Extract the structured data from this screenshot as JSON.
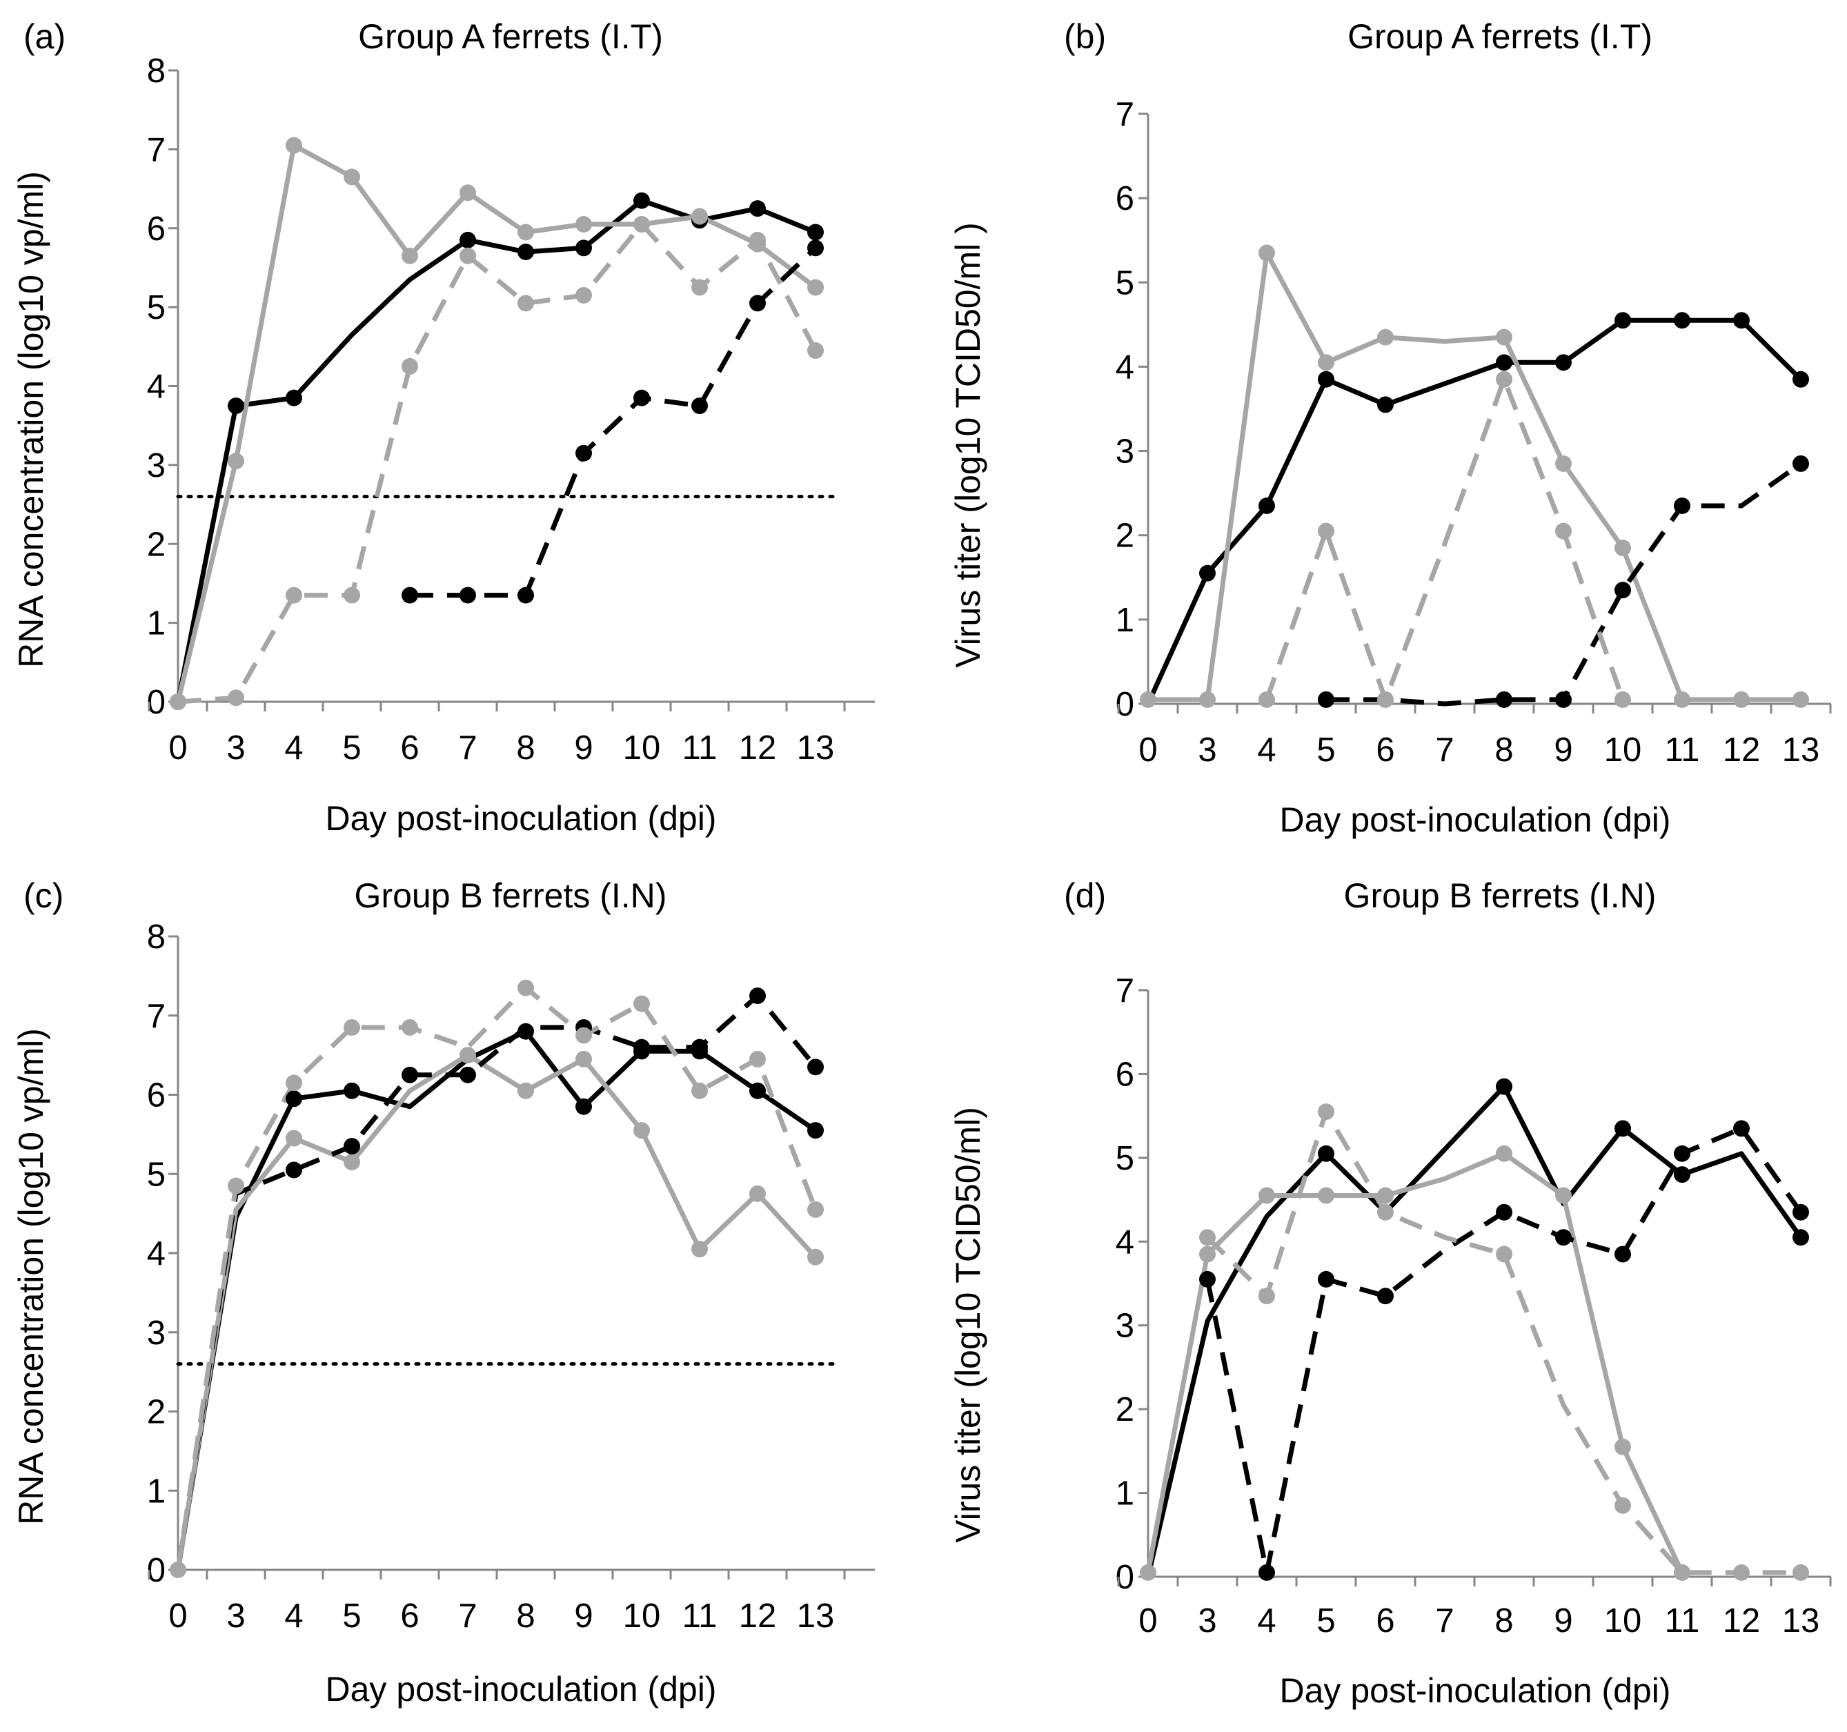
{
  "chart_data": [
    {
      "type": "line",
      "panel_label": "(a)",
      "title": "Group A ferrets (I.T)",
      "xlabel": "Day post-inoculation (dpi)",
      "ylabel": "RNA concentration (log10 vp/ml)",
      "categories": [
        "0",
        "3",
        "4",
        "5",
        "6",
        "7",
        "8",
        "9",
        "10",
        "11",
        "12",
        "13"
      ],
      "ylim": [
        0,
        8
      ],
      "yticks": [
        0,
        1,
        2,
        3,
        4,
        5,
        6,
        7,
        8
      ],
      "grid": false,
      "legend": "none",
      "series": [
        {
          "color": "#000000",
          "style": "solid",
          "markers": [
            0,
            1,
            2,
            5,
            6,
            7,
            8,
            9,
            10,
            11
          ],
          "values": [
            0,
            3.75,
            3.85,
            4.65,
            5.35,
            5.85,
            5.7,
            5.75,
            6.35,
            6.1,
            6.25,
            5.95
          ]
        },
        {
          "color": "#a6a6a6",
          "style": "solid",
          "markers": [
            0,
            1,
            2,
            3,
            4,
            5,
            6,
            7,
            8,
            9,
            10,
            11
          ],
          "values": [
            0,
            3.05,
            7.05,
            6.65,
            5.65,
            6.45,
            5.95,
            6.05,
            6.05,
            6.15,
            5.8,
            5.25
          ]
        },
        {
          "color": "#000000",
          "style": "dashed",
          "markers": [
            4,
            5,
            6,
            7,
            8,
            9,
            10,
            11
          ],
          "values": [
            null,
            null,
            null,
            null,
            1.35,
            1.35,
            1.35,
            3.15,
            3.85,
            3.75,
            5.05,
            5.75
          ]
        },
        {
          "color": "#a6a6a6",
          "style": "dashed",
          "markers": [
            0,
            1,
            2,
            3,
            4,
            5,
            6,
            7,
            8,
            9,
            10,
            11
          ],
          "values": [
            0,
            0.05,
            1.35,
            1.35,
            4.25,
            5.65,
            5.05,
            5.15,
            6.05,
            5.25,
            5.85,
            4.45
          ]
        }
      ],
      "threshold": {
        "value": 2.6,
        "style": "dotted"
      }
    },
    {
      "type": "line",
      "panel_label": "(b)",
      "title": "Group A ferrets (I.T)",
      "xlabel": "Day post-inoculation (dpi)",
      "ylabel": "Virus titer (log10 TCID50/ml )",
      "categories": [
        "0",
        "3",
        "4",
        "5",
        "6",
        "7",
        "8",
        "9",
        "10",
        "11",
        "12",
        "13"
      ],
      "ylim": [
        0,
        7
      ],
      "yticks": [
        0,
        1,
        2,
        3,
        4,
        5,
        6,
        7
      ],
      "grid": false,
      "legend": "none",
      "series": [
        {
          "color": "#000000",
          "style": "solid",
          "markers": [
            1,
            2,
            3,
            4,
            6,
            7,
            8,
            9,
            10,
            11
          ],
          "values": [
            0,
            1.55,
            2.35,
            3.85,
            3.55,
            3.8,
            4.05,
            4.05,
            4.55,
            4.55,
            4.55,
            3.85
          ]
        },
        {
          "color": "#a6a6a6",
          "style": "solid",
          "markers": [
            0,
            1,
            2,
            3,
            4,
            6,
            7,
            8,
            9,
            10,
            11
          ],
          "values": [
            0.05,
            0.05,
            5.35,
            4.05,
            4.35,
            4.3,
            4.35,
            2.85,
            1.85,
            0.05,
            0.05,
            0.05
          ]
        },
        {
          "color": "#000000",
          "style": "dashed",
          "markers": [
            3,
            6,
            7,
            8,
            9,
            11
          ],
          "values": [
            null,
            null,
            null,
            0.05,
            0.05,
            0,
            0.05,
            0.05,
            1.35,
            2.35,
            2.35,
            2.85
          ]
        },
        {
          "color": "#a6a6a6",
          "style": "dashed",
          "markers": [
            2,
            3,
            4,
            6,
            7,
            8
          ],
          "values": [
            null,
            null,
            0.05,
            2.05,
            0.05,
            1.9,
            3.85,
            2.05,
            0.05,
            null,
            null,
            null
          ]
        }
      ]
    },
    {
      "type": "line",
      "panel_label": "(c)",
      "title": "Group B ferrets (I.N)",
      "xlabel": "Day post-inoculation (dpi)",
      "ylabel": "RNA concentration (log10 vp/ml)",
      "categories": [
        "0",
        "3",
        "4",
        "5",
        "6",
        "7",
        "8",
        "9",
        "10",
        "11",
        "12",
        "13"
      ],
      "ylim": [
        0,
        8
      ],
      "yticks": [
        0,
        1,
        2,
        3,
        4,
        5,
        6,
        7,
        8
      ],
      "grid": false,
      "legend": "none",
      "series": [
        {
          "color": "#000000",
          "style": "solid",
          "markers": [
            2,
            3,
            6,
            7,
            8,
            9,
            10,
            11
          ],
          "values": [
            0,
            4.45,
            5.95,
            6.05,
            5.85,
            6.45,
            6.8,
            5.85,
            6.55,
            6.55,
            6.05,
            5.55
          ]
        },
        {
          "color": "#a6a6a6",
          "style": "solid",
          "markers": [
            2,
            3,
            5,
            6,
            7,
            8,
            9,
            10,
            11
          ],
          "values": [
            0,
            4.55,
            5.45,
            5.15,
            6.05,
            6.5,
            6.05,
            6.45,
            5.55,
            4.05,
            4.75,
            3.95
          ]
        },
        {
          "color": "#000000",
          "style": "dashed",
          "markers": [
            2,
            3,
            4,
            5,
            7,
            8,
            9,
            10,
            11
          ],
          "values": [
            0,
            4.75,
            5.05,
            5.35,
            6.25,
            6.25,
            6.85,
            6.85,
            6.6,
            6.6,
            7.25,
            6.35
          ]
        },
        {
          "color": "#a6a6a6",
          "style": "dashed",
          "markers": [
            0,
            1,
            2,
            3,
            4,
            6,
            7,
            8,
            9,
            10,
            11
          ],
          "values": [
            0,
            4.85,
            6.15,
            6.85,
            6.85,
            6.6,
            7.35,
            6.75,
            7.15,
            6.05,
            6.45,
            4.55
          ]
        }
      ],
      "threshold": {
        "value": 2.6,
        "style": "dotted"
      }
    },
    {
      "type": "line",
      "panel_label": "(d)",
      "title": "Group B ferrets (I.N)",
      "xlabel": "Day post-inoculation (dpi)",
      "ylabel": "Virus titer (log10 TCID50/ml)",
      "categories": [
        "0",
        "3",
        "4",
        "5",
        "6",
        "7",
        "8",
        "9",
        "10",
        "11",
        "12",
        "13"
      ],
      "ylim": [
        0,
        7
      ],
      "yticks": [
        0,
        1,
        2,
        3,
        4,
        5,
        6,
        7
      ],
      "grid": false,
      "legend": "none",
      "series": [
        {
          "color": "#000000",
          "style": "solid",
          "markers": [
            3,
            6,
            8,
            9,
            11
          ],
          "values": [
            0,
            3.05,
            4.3,
            5.05,
            4.35,
            5.1,
            5.85,
            4.45,
            5.35,
            4.8,
            5.05,
            4.05
          ]
        },
        {
          "color": "#a6a6a6",
          "style": "solid",
          "markers": [
            0,
            1,
            2,
            3,
            4,
            6,
            7,
            8,
            9
          ],
          "values": [
            0.05,
            3.85,
            4.55,
            4.55,
            4.55,
            4.75,
            5.05,
            4.55,
            1.55,
            0.05,
            null,
            null
          ]
        },
        {
          "color": "#000000",
          "style": "dashed",
          "markers": [
            1,
            2,
            3,
            4,
            6,
            7,
            8,
            9,
            10,
            11
          ],
          "values": [
            null,
            3.55,
            0.05,
            3.55,
            3.35,
            3.9,
            4.35,
            4.05,
            3.85,
            5.05,
            5.35,
            4.35
          ]
        },
        {
          "color": "#a6a6a6",
          "style": "dashed",
          "markers": [
            1,
            2,
            3,
            4,
            6,
            8,
            9,
            10,
            11
          ],
          "values": [
            null,
            4.05,
            3.35,
            5.55,
            4.35,
            4.05,
            3.85,
            2.05,
            0.85,
            0.05,
            0.05,
            0.05
          ]
        }
      ]
    }
  ]
}
